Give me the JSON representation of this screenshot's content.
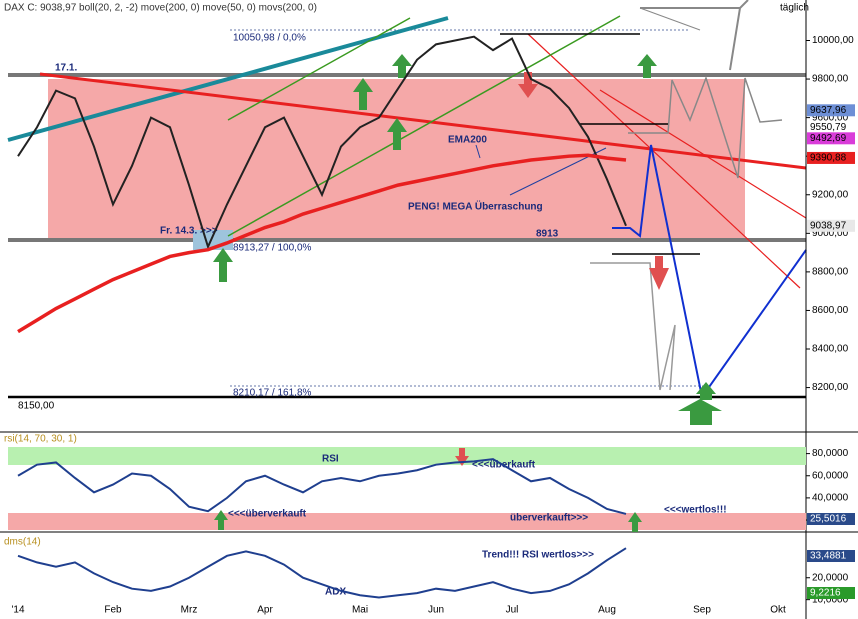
{
  "chart_data": [
    {
      "type": "line",
      "title": "DAX C: 9038,97 boll(20, 2, -2) move(200, 0) move(50, 0) movs(200, 0)",
      "subtitle": "täglich",
      "ylim": [
        7980,
        10210
      ],
      "yticks": [
        {
          "value": 8200,
          "label": "8200,00"
        },
        {
          "value": 8400,
          "label": "8400,00"
        },
        {
          "value": 8600,
          "label": "8600,00"
        },
        {
          "value": 8800,
          "label": "8800,00"
        },
        {
          "value": 9000,
          "label": "9000,00"
        },
        {
          "value": 9200,
          "label": "9200,00"
        },
        {
          "value": 9400,
          "label": "9400,00"
        },
        {
          "value": 9600,
          "label": "9600,00"
        },
        {
          "value": 9800,
          "label": "9800,00"
        },
        {
          "value": 10000,
          "label": "10000,00"
        }
      ],
      "series": [
        {
          "name": "DAX",
          "color": "#222222",
          "values": [
            9400,
            9550,
            9740,
            9700,
            9450,
            9150,
            9350,
            9600,
            9550,
            9250,
            8930,
            9150,
            9350,
            9550,
            9600,
            9400,
            9200,
            9450,
            9550,
            9600,
            9750,
            9900,
            9980,
            10000,
            10020,
            9950,
            10010,
            9800,
            9750,
            9650,
            9500,
            9280,
            9038.97,
            null,
            null,
            null,
            null,
            null,
            null,
            null,
            null,
            null
          ]
        },
        {
          "name": "EMA200",
          "color": "#e82020",
          "values": [
            8490,
            8550,
            8610,
            8660,
            8710,
            8760,
            8800,
            8840,
            8880,
            8900,
            8915,
            8950,
            8990,
            9030,
            9060,
            9100,
            9130,
            9160,
            9190,
            9220,
            9250,
            9270,
            9290,
            9310,
            9330,
            9350,
            9365,
            9380,
            9390,
            9400,
            9405,
            9390,
            9380,
            null,
            null,
            null,
            null,
            null,
            null,
            null,
            null,
            null
          ]
        }
      ],
      "price_labels": [
        {
          "value": 9637.96,
          "label": "9637,96",
          "color": "#6d8fd6"
        },
        {
          "value": 9550.79,
          "label": "9550,79",
          "color": "#ffffff"
        },
        {
          "value": 9492.69,
          "label": "9492,69",
          "color": "#d93cd9"
        },
        {
          "value": 9390.88,
          "label": "9390,88",
          "color": "#e82020"
        },
        {
          "value": 9038.97,
          "label": "9038,97",
          "color": "#e8e8e8"
        }
      ],
      "annotations": [
        "17.1.",
        "Fr. 14.3. >>>",
        "10050,98 / 0,0%",
        "8913,27 / 100,0%",
        "8210,17 / 161,8%",
        "8150,00",
        "8913",
        "EMA200",
        "PENG! MEGA Überraschung"
      ]
    },
    {
      "type": "line",
      "title": "rsi(14, 70, 30, 1)",
      "ylim": [
        11,
        95
      ],
      "yticks": [
        {
          "value": 20,
          "label": "20,0000"
        },
        {
          "value": 40,
          "label": "40,0000"
        },
        {
          "value": 60,
          "label": "60,0000"
        },
        {
          "value": 80,
          "label": "80,0000"
        }
      ],
      "series": [
        {
          "name": "RSI",
          "color": "#1f3f8f",
          "values": [
            60,
            70,
            72,
            58,
            45,
            52,
            62,
            60,
            48,
            32,
            28,
            40,
            55,
            60,
            52,
            45,
            55,
            58,
            55,
            60,
            62,
            65,
            70,
            72,
            73,
            75,
            65,
            55,
            58,
            48,
            40,
            30,
            25.5016,
            null,
            null,
            null,
            null,
            null,
            null,
            null,
            null,
            null
          ]
        }
      ],
      "value_labels": [
        "25,5016"
      ],
      "annotations": [
        "<<<überkauft",
        "<<<überverkauft",
        "überverkauft>>>",
        "<<<wertlos!!!"
      ]
    },
    {
      "type": "line",
      "title": "dms(14)",
      "ylim": [
        3,
        39.5
      ],
      "yticks": [
        {
          "value": 10,
          "label": "10,0000"
        },
        {
          "value": 20,
          "label": "20,0000"
        }
      ],
      "series": [
        {
          "name": "ADX",
          "color": "#1f3f8f",
          "values": [
            30,
            27,
            25,
            27,
            22,
            18,
            15,
            14,
            16,
            20,
            25,
            30,
            32,
            30,
            26,
            20,
            17,
            14,
            12,
            11,
            12,
            13,
            15,
            14,
            16,
            18,
            15,
            13,
            14,
            17,
            22,
            28,
            33.4881,
            null,
            null,
            null,
            null,
            null,
            null,
            null,
            null,
            null
          ]
        }
      ],
      "value_labels": [
        "33,4881",
        "9,2216"
      ],
      "annotations": [
        "Trend!!! RSI wertlos>>>"
      ],
      "categories": [
        "'14",
        null,
        null,
        null,
        null,
        "Feb",
        null,
        null,
        null,
        "Mrz",
        null,
        null,
        null,
        "Apr",
        null,
        null,
        null,
        null,
        "Mai",
        null,
        null,
        null,
        "Jun",
        null,
        null,
        null,
        "Jul",
        null,
        null,
        null,
        null,
        "Aug",
        null,
        null,
        null,
        null,
        "Sep",
        null,
        null,
        null,
        "Okt",
        null
      ]
    }
  ]
}
